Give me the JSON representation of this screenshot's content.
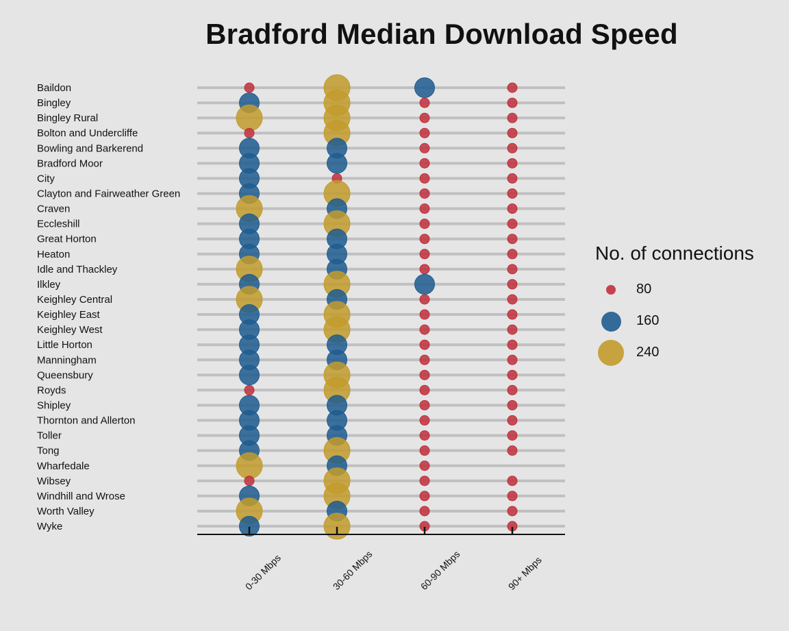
{
  "chart_data": {
    "type": "scatter",
    "title": "Bradford Median Download Speed",
    "xlabel": "",
    "ylabel": "",
    "categories": [
      "0-30 Mbps",
      "30-60 Mbps",
      "60-90 Mbps",
      "90+ Mbps"
    ],
    "rows": [
      "Baildon",
      "Bingley",
      "Bingley Rural",
      "Bolton and Undercliffe",
      "Bowling and Barkerend",
      "Bradford Moor",
      "City",
      "Clayton and Fairweather Green",
      "Craven",
      "Eccleshill",
      "Great Horton",
      "Heaton",
      "Idle and Thackley",
      "Ilkley",
      "Keighley Central",
      "Keighley East",
      "Keighley West",
      "Little Horton",
      "Manningham",
      "Queensbury",
      "Royds",
      "Shipley",
      "Thornton and Allerton",
      "Toller",
      "Tong",
      "Wharfedale",
      "Wibsey",
      "Windhill and Wrose",
      "Worth Valley",
      "Wyke"
    ],
    "values": [
      [
        80,
        240,
        160,
        80
      ],
      [
        160,
        240,
        80,
        80
      ],
      [
        240,
        240,
        80,
        80
      ],
      [
        80,
        240,
        80,
        80
      ],
      [
        160,
        160,
        80,
        80
      ],
      [
        160,
        160,
        80,
        80
      ],
      [
        160,
        80,
        80,
        80
      ],
      [
        160,
        240,
        80,
        80
      ],
      [
        240,
        160,
        80,
        80
      ],
      [
        160,
        240,
        80,
        80
      ],
      [
        160,
        160,
        80,
        80
      ],
      [
        160,
        160,
        80,
        80
      ],
      [
        240,
        160,
        80,
        80
      ],
      [
        160,
        240,
        160,
        80
      ],
      [
        240,
        160,
        80,
        80
      ],
      [
        160,
        240,
        80,
        80
      ],
      [
        160,
        240,
        80,
        80
      ],
      [
        160,
        160,
        80,
        80
      ],
      [
        160,
        160,
        80,
        80
      ],
      [
        160,
        240,
        80,
        80
      ],
      [
        80,
        240,
        80,
        80
      ],
      [
        160,
        160,
        80,
        80
      ],
      [
        160,
        160,
        80,
        80
      ],
      [
        160,
        160,
        80,
        80
      ],
      [
        160,
        240,
        80,
        80
      ],
      [
        240,
        160,
        80,
        null
      ],
      [
        80,
        240,
        80,
        80
      ],
      [
        160,
        240,
        80,
        80
      ],
      [
        240,
        160,
        80,
        80
      ],
      [
        160,
        240,
        80,
        80
      ]
    ],
    "legend": {
      "title": "No. of connections",
      "position": "right",
      "items": [
        {
          "value": 80,
          "label": "80",
          "color": "#c0303d"
        },
        {
          "value": 160,
          "label": "160",
          "color": "#1f5c8f"
        },
        {
          "value": 240,
          "label": "240",
          "color": "#c29b2b"
        }
      ]
    },
    "colors": {
      "80": "#c0303d",
      "160": "#1f5c8f",
      "240": "#c29b2b"
    },
    "grid": false
  }
}
